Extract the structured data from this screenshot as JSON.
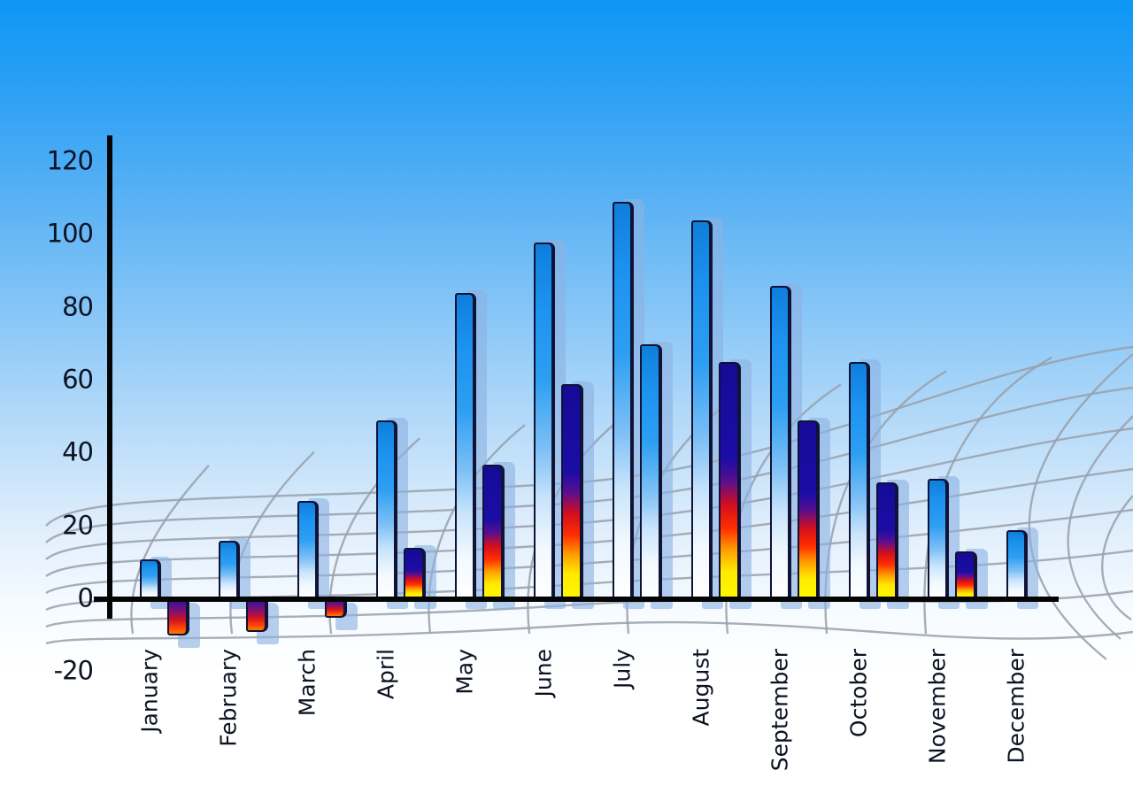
{
  "chart_data": {
    "type": "bar",
    "title": "",
    "xlabel": "",
    "ylabel": "",
    "legend": "none",
    "grid": "decorative curved perspective mesh on floor",
    "categories": [
      "January",
      "February",
      "March",
      "April",
      "May",
      "June",
      "July",
      "August",
      "September",
      "October",
      "November",
      "December"
    ],
    "series": [
      {
        "name": "primary-blue-bars",
        "values": [
          11,
          16,
          27,
          49,
          84,
          98,
          109,
          104,
          86,
          65,
          33,
          19
        ]
      },
      {
        "name": "secondary-accent-bars",
        "values": [
          -10,
          -9,
          -5,
          14,
          37,
          59,
          70,
          65,
          49,
          32,
          13,
          null
        ]
      }
    ],
    "secondary_bar_styles": [
      "rainbow",
      "rainbow",
      "rainbow",
      "rainbow",
      "rainbow",
      "rainbow",
      "blue",
      "rainbow",
      "rainbow",
      "rainbow",
      "rainbow",
      "none"
    ],
    "y_axis": {
      "min": -20,
      "max": 120,
      "ticks": [
        120,
        100,
        80,
        60,
        40,
        20,
        0,
        -20
      ]
    },
    "colors": {
      "sky_top": "#0d96f6",
      "sky_bottom": "#ffffff",
      "bar_blue": "#1d93f0",
      "rainbow_navy": "#150b96",
      "rainbow_red": "#d40e1d",
      "rainbow_yellow": "#ffe900",
      "bar_shadow": "rgba(141,178,226,0.62)",
      "mesh_line": "#98a0aa",
      "axis": "#050505",
      "text": "#0c1322"
    }
  }
}
